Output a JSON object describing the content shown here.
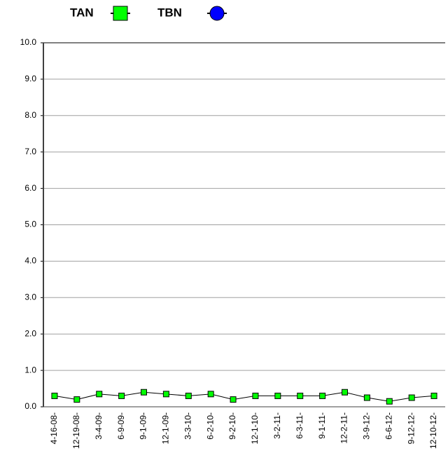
{
  "chart_data": {
    "type": "line",
    "categories": [
      "4-16-08-",
      "12-19-08-",
      "3-4-09-",
      "6-9-09-",
      "9-1-09-",
      "12-1-09-",
      "3-3-10-",
      "6-2-10-",
      "9-2-10-",
      "12-1-10-",
      "3-2-11-",
      "6-3-11-",
      "9-1-11-",
      "12-2-11-",
      "3-9-12-",
      "6-6-12-",
      "9-12-12-",
      "12-10-12-"
    ],
    "series": [
      {
        "name": "TAN",
        "color": "#00ff00",
        "values": [
          0.3,
          0.2,
          0.35,
          0.3,
          0.4,
          0.35,
          0.3,
          0.35,
          0.2,
          0.3,
          0.3,
          0.3,
          0.3,
          0.4,
          0.25,
          0.15,
          0.25,
          0.3
        ]
      },
      {
        "name": "TBN",
        "color": "#0000ff",
        "values": [
          null,
          null,
          null,
          null,
          null,
          null,
          null,
          null,
          null,
          null,
          null,
          null,
          null,
          null,
          null,
          null,
          null,
          null
        ]
      }
    ],
    "ylim": [
      0,
      10
    ],
    "yticks": [
      {
        "value": 0,
        "label": "0.0"
      },
      {
        "value": 1,
        "label": "1.0"
      },
      {
        "value": 2,
        "label": "2.0"
      },
      {
        "value": 3,
        "label": "3.0"
      },
      {
        "value": 4,
        "label": "4.0"
      },
      {
        "value": 5,
        "label": "5.0"
      },
      {
        "value": 6,
        "label": "6.0"
      },
      {
        "value": 7,
        "label": "7.0"
      },
      {
        "value": 8,
        "label": "8.0"
      },
      {
        "value": 9,
        "label": "9.0"
      },
      {
        "value": 10,
        "label": "10.0"
      }
    ],
    "grid": true
  }
}
